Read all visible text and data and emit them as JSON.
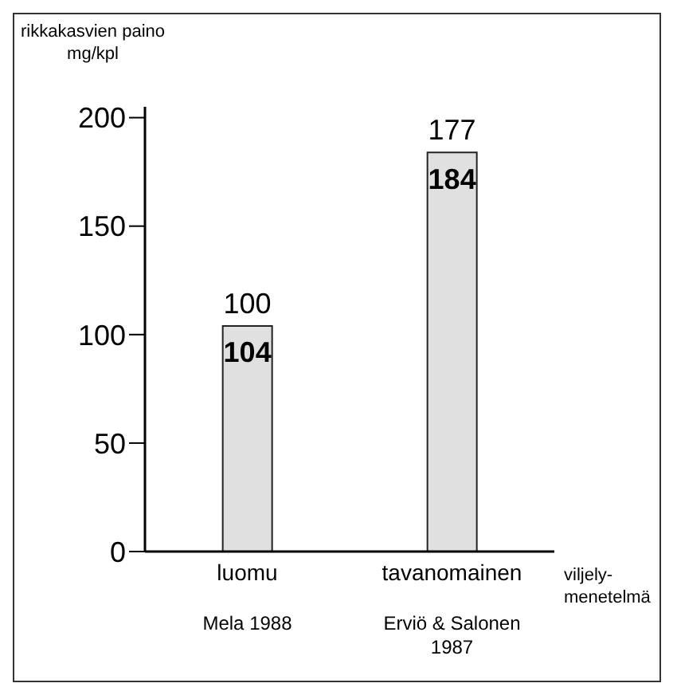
{
  "chart_data": {
    "type": "bar",
    "ylabel": "rikkakasvien paino\nmg/kpl",
    "xlabel": "viljely-\nmenetelmä",
    "categories": [
      "luomu",
      "tavanomainen"
    ],
    "values": [
      104,
      184
    ],
    "color": "#e0e0e0",
    "data_labels": true,
    "ylim": [
      0,
      205
    ],
    "yticks": [
      0,
      50,
      100,
      150,
      200
    ],
    "grid": false,
    "annotations": [
      {
        "text": "100",
        "x": "luomu",
        "y": 104
      },
      {
        "text": "177",
        "x": "tavanomainen",
        "y": 184
      },
      "Mela 1988",
      "Erviö & Salonen\n1987"
    ]
  }
}
